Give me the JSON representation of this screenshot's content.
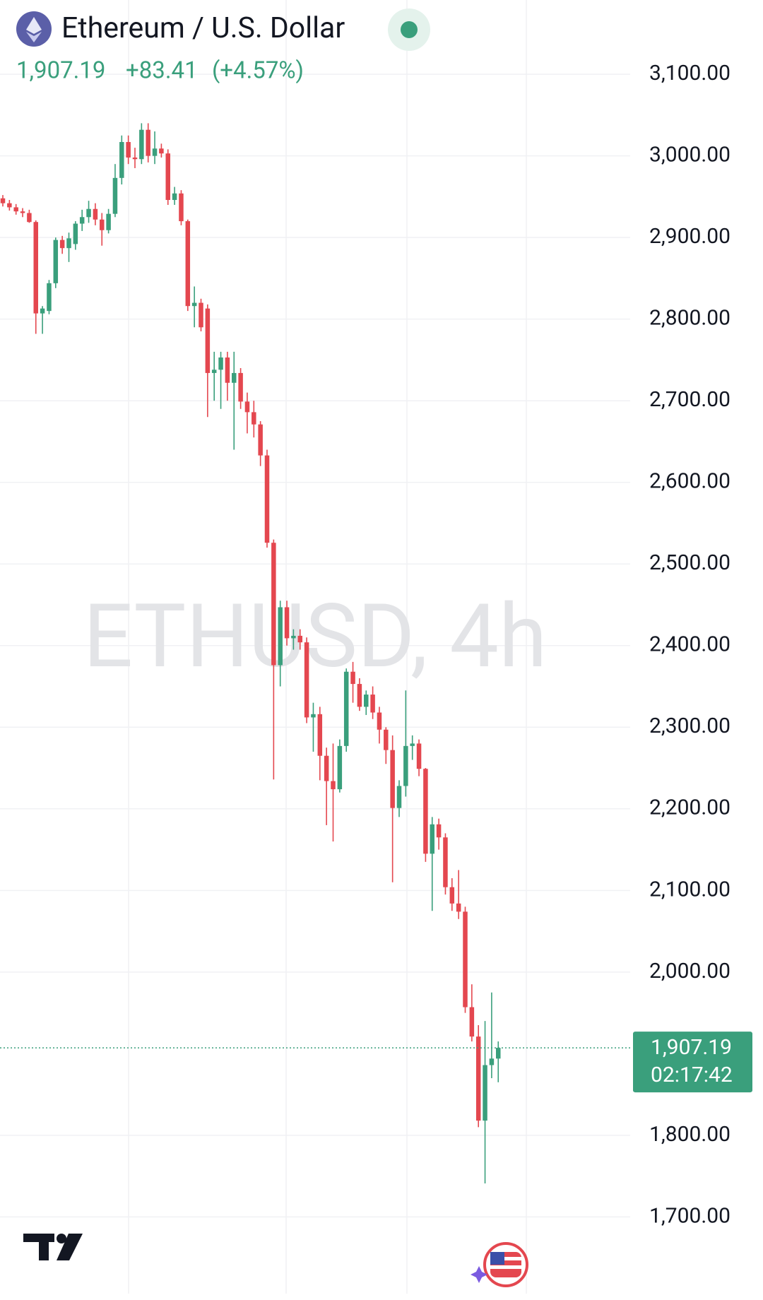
{
  "chart_data": {
    "type": "candlestick",
    "title": "Ethereum / U.S. Dollar",
    "price": "1,907.19",
    "change": "+83.41",
    "change_pct": "(+4.57%)",
    "watermark": "ETHUSD, 4h",
    "last_price_label": "1,907.19",
    "countdown": "02:17:42",
    "up_color": "#3a9f7c",
    "down_color": "#e4474f",
    "grid": true,
    "ylim": [
      1606,
      3191
    ],
    "yticks": [
      {
        "value": 1700,
        "label": "1,700.00"
      },
      {
        "value": 1800,
        "label": "1,800.00"
      },
      {
        "value": 2000,
        "label": "2,000.00"
      },
      {
        "value": 2100,
        "label": "2,100.00"
      },
      {
        "value": 2200,
        "label": "2,200.00"
      },
      {
        "value": 2300,
        "label": "2,300.00"
      },
      {
        "value": 2400,
        "label": "2,400.00"
      },
      {
        "value": 2500,
        "label": "2,500.00"
      },
      {
        "value": 2600,
        "label": "2,600.00"
      },
      {
        "value": 2700,
        "label": "2,700.00"
      },
      {
        "value": 2800,
        "label": "2,800.00"
      },
      {
        "value": 2900,
        "label": "2,900.00"
      },
      {
        "value": 3000,
        "label": "3,000.00"
      },
      {
        "value": 3100,
        "label": "3,100.00"
      }
    ],
    "open": [
      2948,
      2942,
      2937,
      2932,
      2930,
      2919,
      2807,
      2810,
      2844,
      2897,
      2887,
      2892,
      2917,
      2925,
      2935,
      2922,
      2909,
      2929,
      2973,
      3017,
      2998,
      2996,
      3032,
      3000,
      3009,
      3003,
      2946,
      2954,
      2920,
      2816,
      2820,
      2813,
      2734,
      2738,
      2753,
      2722,
      2734,
      2699,
      2686,
      2671,
      2633,
      2526,
      2376,
      2447,
      2409,
      2412,
      2404,
      2312,
      2316,
      2265,
      2234,
      2224,
      2277,
      2368,
      2353,
      2325,
      2340,
      2318,
      2297,
      2272,
      2201,
      2228,
      2277,
      2280,
      2249,
      2145,
      2181,
      2165,
      2104,
      2084,
      2074,
      1957,
      1921,
      1818,
      1886,
      1894
    ],
    "high": [
      2952,
      2946,
      2941,
      2936,
      2934,
      2921,
      2816,
      2848,
      2900,
      2902,
      2906,
      2920,
      2934,
      2945,
      2942,
      2930,
      2935,
      2990,
      3025,
      3025,
      3010,
      3040,
      3040,
      3030,
      3015,
      3008,
      2962,
      2958,
      2922,
      2840,
      2825,
      2818,
      2760,
      2760,
      2760,
      2760,
      2740,
      2710,
      2700,
      2675,
      2640,
      2530,
      2455,
      2455,
      2420,
      2420,
      2410,
      2330,
      2325,
      2275,
      2280,
      2285,
      2372,
      2380,
      2360,
      2345,
      2350,
      2325,
      2300,
      2290,
      2235,
      2345,
      2290,
      2285,
      2250,
      2190,
      2188,
      2170,
      2115,
      2125,
      2080,
      1985,
      1935,
      1940,
      1975,
      1915
    ],
    "low": [
      2938,
      2933,
      2928,
      2925,
      2918,
      2782,
      2782,
      2806,
      2838,
      2880,
      2870,
      2885,
      2908,
      2918,
      2915,
      2890,
      2905,
      2925,
      2965,
      2990,
      2985,
      2990,
      2992,
      2990,
      2998,
      2940,
      2940,
      2915,
      2810,
      2790,
      2785,
      2680,
      2700,
      2690,
      2700,
      2640,
      2690,
      2660,
      2655,
      2620,
      2520,
      2236,
      2350,
      2400,
      2395,
      2395,
      2305,
      2270,
      2235,
      2180,
      2160,
      2220,
      2270,
      2330,
      2320,
      2315,
      2310,
      2280,
      2255,
      2110,
      2190,
      2215,
      2260,
      2240,
      2135,
      2075,
      2150,
      2095,
      2075,
      2065,
      1950,
      1915,
      1810,
      1741,
      1870,
      1865
    ],
    "close": [
      2942,
      2937,
      2932,
      2930,
      2919,
      2807,
      2813,
      2844,
      2897,
      2887,
      2899,
      2917,
      2925,
      2935,
      2922,
      2909,
      2929,
      2973,
      3017,
      2998,
      2996,
      3032,
      3000,
      3009,
      3003,
      2946,
      2954,
      2920,
      2816,
      2820,
      2790,
      2734,
      2738,
      2753,
      2722,
      2734,
      2699,
      2686,
      2671,
      2633,
      2526,
      2376,
      2447,
      2409,
      2412,
      2404,
      2312,
      2316,
      2265,
      2234,
      2224,
      2277,
      2368,
      2353,
      2325,
      2340,
      2318,
      2297,
      2272,
      2201,
      2228,
      2277,
      2280,
      2249,
      2145,
      2181,
      2165,
      2104,
      2084,
      2074,
      1957,
      1921,
      1818,
      1886,
      1894,
      1907.19
    ]
  }
}
